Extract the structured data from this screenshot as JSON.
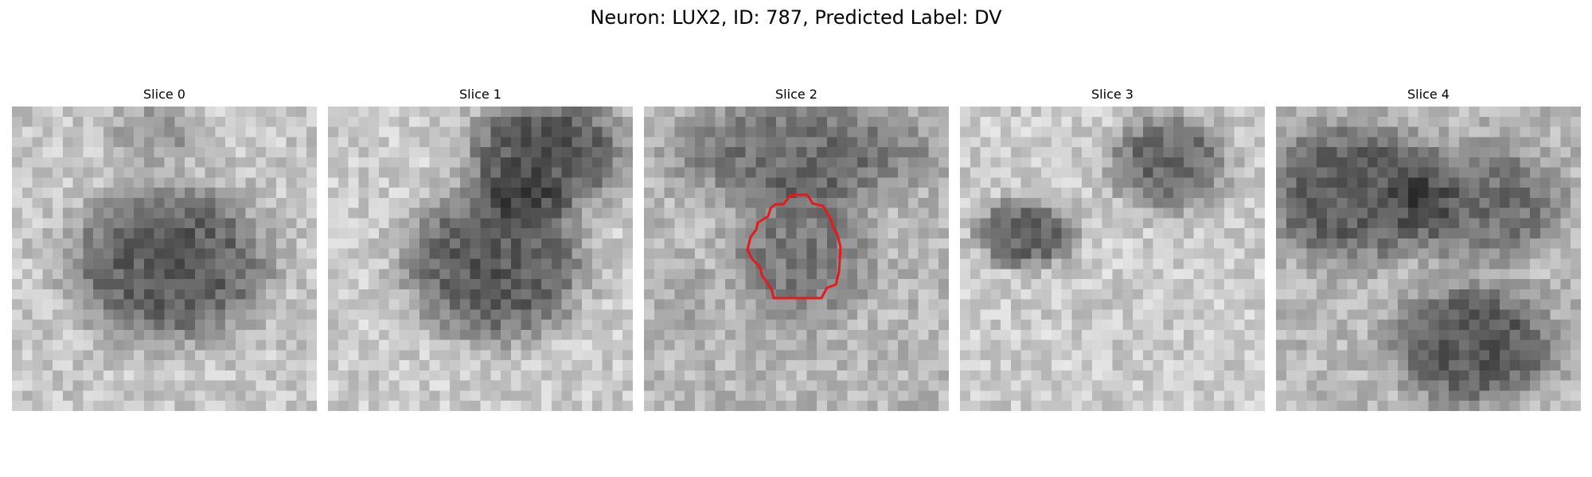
{
  "figure": {
    "title": "Neuron: LUX2, ID: 787, Predicted Label: DV"
  },
  "slices": [
    {
      "title": "Slice 0",
      "has_contour": false
    },
    {
      "title": "Slice 1",
      "has_contour": false
    },
    {
      "title": "Slice 2",
      "has_contour": true
    },
    {
      "title": "Slice 3",
      "has_contour": false
    },
    {
      "title": "Slice 4",
      "has_contour": false
    }
  ],
  "colors": {
    "contour": "#e41a1c",
    "colormap": "gray"
  }
}
